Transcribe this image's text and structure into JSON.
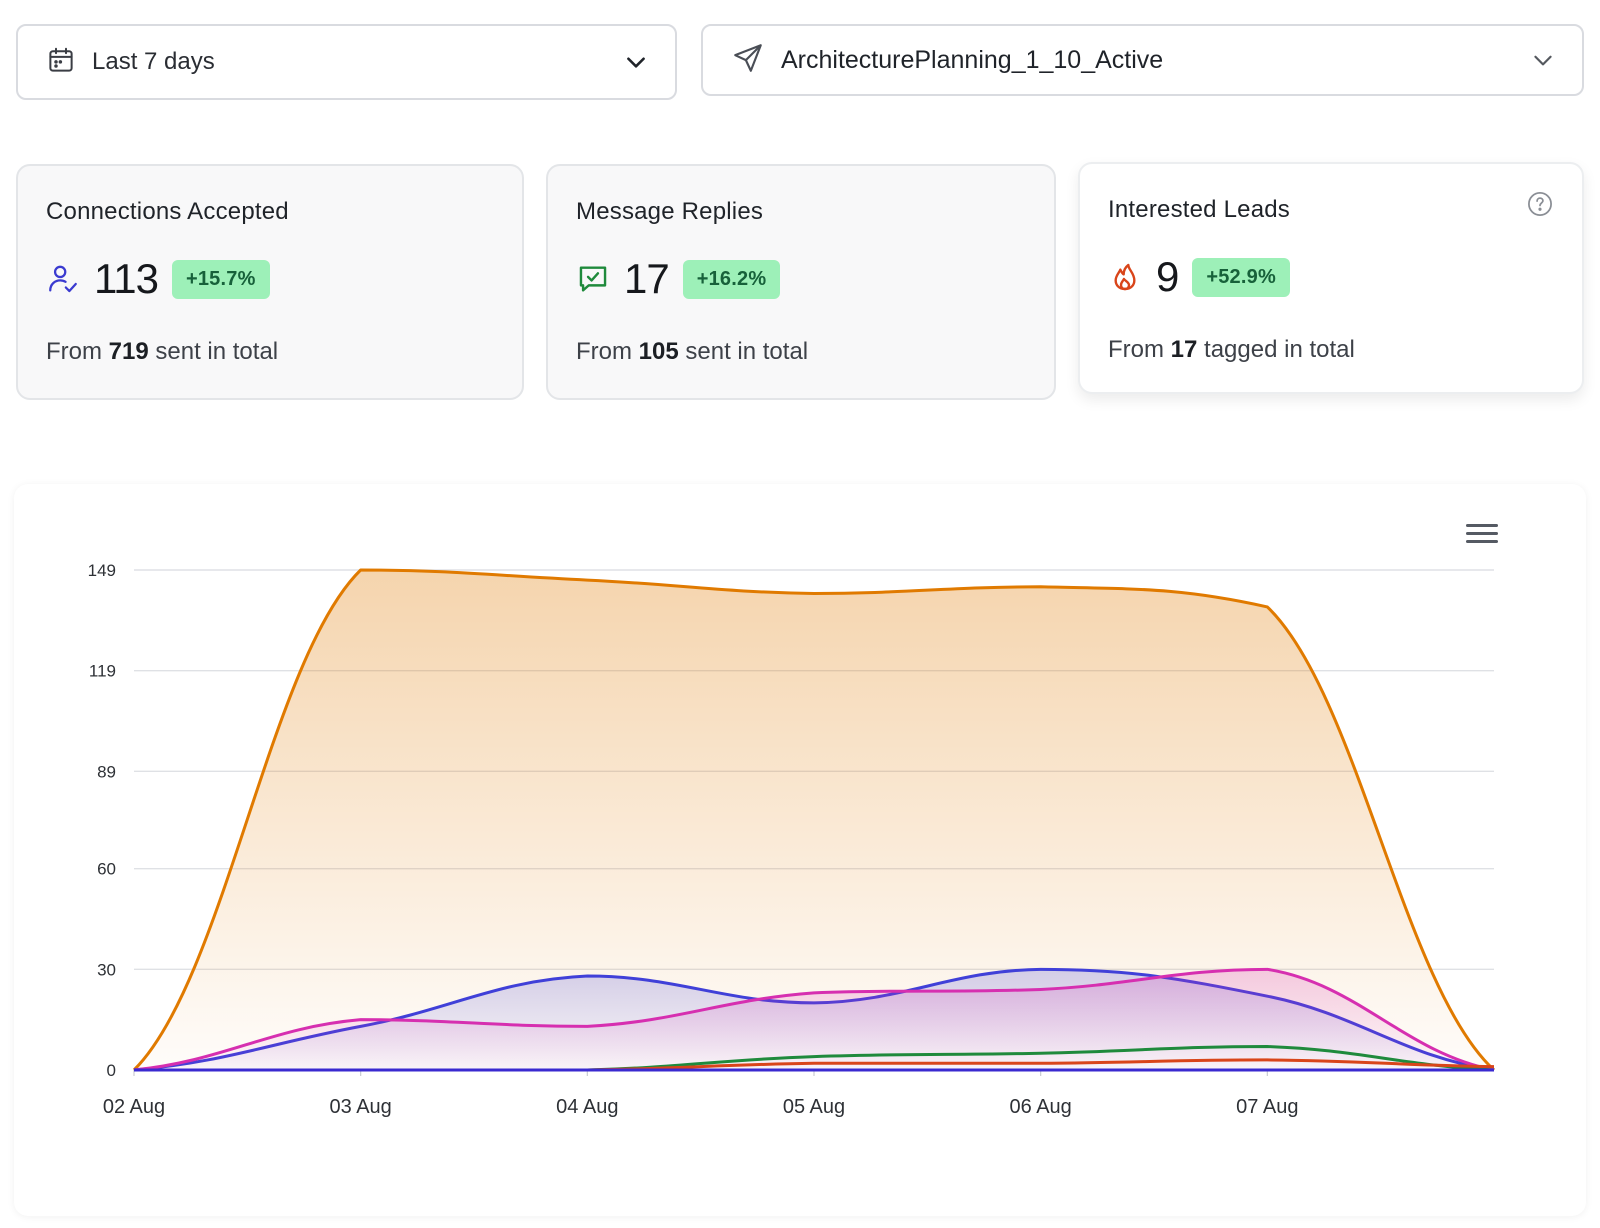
{
  "filters": {
    "date_range": "Last 7 days",
    "campaign": "ArchitecturePlanning_1_10_Active"
  },
  "cards": [
    {
      "title": "Connections Accepted",
      "value": "113",
      "change": "+15.7%",
      "foot_prefix": "From ",
      "foot_number": "719",
      "foot_suffix": " sent in total",
      "icon": "user-check-icon"
    },
    {
      "title": "Message Replies",
      "value": "17",
      "change": "+16.2%",
      "foot_prefix": "From ",
      "foot_number": "105",
      "foot_suffix": " sent in total",
      "icon": "message-check-icon"
    },
    {
      "title": "Interested Leads",
      "value": "9",
      "change": "+52.9%",
      "foot_prefix": "From ",
      "foot_number": "17",
      "foot_suffix": " tagged in total",
      "icon": "flame-icon"
    }
  ],
  "colors": {
    "orange": "#e07a00",
    "blue": "#4040d8",
    "magenta": "#d62fb0",
    "green": "#1f8a3c",
    "red": "#d9451a",
    "badge_bg": "#9df0b8",
    "badge_text": "#17613a"
  },
  "chart_data": {
    "type": "area",
    "categories": [
      "02 Aug",
      "03 Aug",
      "04 Aug",
      "05 Aug",
      "06 Aug",
      "07 Aug",
      ""
    ],
    "yticks": [
      0,
      30,
      60,
      89,
      119,
      149
    ],
    "ylim": [
      0,
      149
    ],
    "grid": true,
    "series": [
      {
        "color": "#e07a00",
        "fill": true,
        "values": [
          0,
          149,
          146,
          142,
          144,
          138,
          0
        ]
      },
      {
        "color": "#4040d8",
        "fill": true,
        "values": [
          0,
          13,
          28,
          20,
          30,
          22,
          0
        ]
      },
      {
        "color": "#d62fb0",
        "fill": true,
        "values": [
          0,
          15,
          13,
          23,
          24,
          30,
          0
        ]
      },
      {
        "color": "#1f8a3c",
        "fill": false,
        "values": [
          0,
          0,
          0,
          4,
          5,
          7,
          0
        ]
      },
      {
        "color": "#d9451a",
        "fill": false,
        "values": [
          0,
          0,
          0,
          2,
          2,
          3,
          1
        ]
      },
      {
        "color": "#3a2ad0",
        "fill": false,
        "values": [
          0,
          0,
          0,
          0,
          0,
          0,
          0
        ]
      }
    ]
  }
}
